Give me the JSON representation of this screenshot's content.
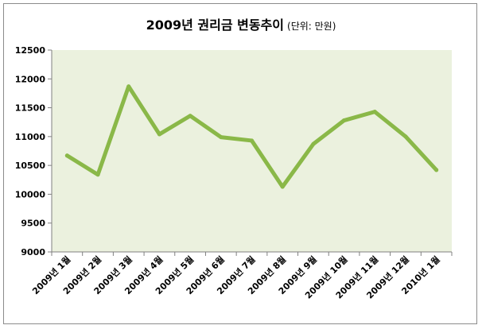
{
  "chart_data": {
    "type": "line",
    "title": "2009년 권리금 변동추이",
    "subtitle": "(단위: 만원)",
    "xlabel": "",
    "ylabel": "",
    "categories": [
      "2009년 1월",
      "2009년 2월",
      "2009년 3월",
      "2009년 4월",
      "2009년 5월",
      "2009년 6월",
      "2009년 7월",
      "2009년 8월",
      "2009년 9월",
      "2009년 10월",
      "2009년 11월",
      "2009년 12월",
      "2010년 1월"
    ],
    "series": [
      {
        "values": [
          10670,
          10340,
          11870,
          11040,
          11360,
          10990,
          10930,
          10130,
          10870,
          11280,
          11430,
          11000,
          10420
        ]
      }
    ],
    "ylim": [
      9000,
      12500
    ],
    "yticks": [
      9000,
      9500,
      10000,
      10500,
      11000,
      11500,
      12000,
      12500
    ],
    "grid": false,
    "legend": "none",
    "colors": {
      "line": "#8ab848",
      "plot_bg": "#ebf1de",
      "axis": "#808080"
    }
  }
}
